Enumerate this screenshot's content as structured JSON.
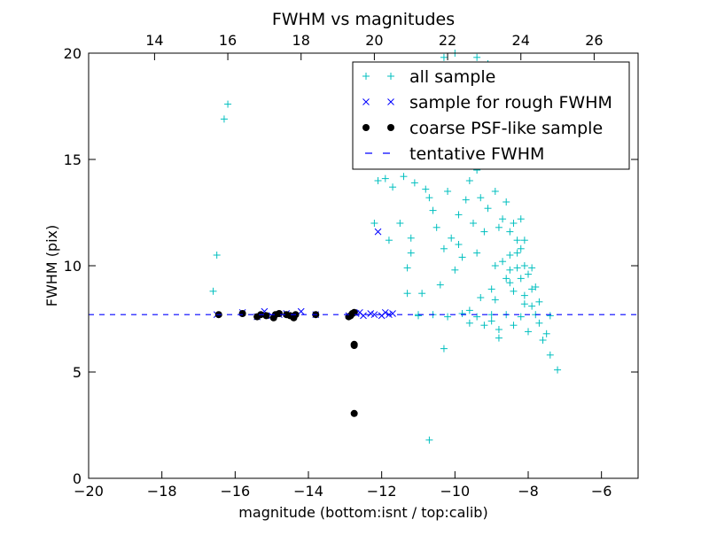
{
  "chart_data": {
    "type": "scatter",
    "title": "FWHM vs magnitudes",
    "xlabel": "magnitude (bottom:isnt / top:calib)",
    "ylabel": "FWHM (pix)",
    "xlim": [
      -20,
      -5
    ],
    "ylim": [
      0,
      20
    ],
    "x_ticks": [
      -20,
      -18,
      -16,
      -14,
      -12,
      -10,
      -8,
      -6
    ],
    "x_tick_labels": [
      "−20",
      "−18",
      "−16",
      "−14",
      "−12",
      "−10",
      "−8",
      "−6"
    ],
    "y_ticks": [
      0,
      5,
      10,
      15,
      20
    ],
    "y_tick_labels": [
      "0",
      "5",
      "10",
      "15",
      "20"
    ],
    "top_axis": {
      "label_offset": 32.2,
      "ticks": [
        14,
        16,
        18,
        20,
        22,
        24,
        26
      ],
      "tick_labels": [
        "14",
        "16",
        "18",
        "20",
        "22",
        "24",
        "26"
      ]
    },
    "legend_position": "upper-right",
    "grid": false,
    "series": [
      {
        "name": "all sample",
        "marker": "plus",
        "color": "#00bfbf",
        "points": [
          [
            -16.6,
            8.8
          ],
          [
            -16.5,
            10.5
          ],
          [
            -16.3,
            16.9
          ],
          [
            -16.2,
            17.6
          ],
          [
            -12.2,
            12.0
          ],
          [
            -12.1,
            14.0
          ],
          [
            -11.9,
            14.1
          ],
          [
            -11.8,
            11.2
          ],
          [
            -11.7,
            13.7
          ],
          [
            -11.5,
            12.0
          ],
          [
            -11.4,
            14.2
          ],
          [
            -11.3,
            9.9
          ],
          [
            -11.3,
            8.7
          ],
          [
            -11.2,
            10.6
          ],
          [
            -11.2,
            11.3
          ],
          [
            -11.1,
            13.9
          ],
          [
            -11.0,
            7.7
          ],
          [
            -10.9,
            8.7
          ],
          [
            -10.8,
            13.6
          ],
          [
            -10.7,
            1.8
          ],
          [
            -10.7,
            13.2
          ],
          [
            -10.6,
            12.6
          ],
          [
            -10.5,
            11.8
          ],
          [
            -10.4,
            9.1
          ],
          [
            -10.3,
            10.8
          ],
          [
            -10.3,
            6.1
          ],
          [
            -10.2,
            13.5
          ],
          [
            -10.1,
            11.3
          ],
          [
            -10.0,
            9.8
          ],
          [
            -10.0,
            14.8
          ],
          [
            -9.9,
            12.4
          ],
          [
            -9.9,
            11.0
          ],
          [
            -9.8,
            10.4
          ],
          [
            -9.7,
            13.1
          ],
          [
            -9.6,
            14.0
          ],
          [
            -9.6,
            7.9
          ],
          [
            -9.5,
            12.0
          ],
          [
            -9.4,
            10.6
          ],
          [
            -9.4,
            14.5
          ],
          [
            -9.3,
            13.2
          ],
          [
            -9.2,
            11.6
          ],
          [
            -9.1,
            12.7
          ],
          [
            -9.0,
            8.9
          ],
          [
            -9.0,
            7.4
          ],
          [
            -8.9,
            13.5
          ],
          [
            -8.9,
            10.0
          ],
          [
            -8.8,
            11.8
          ],
          [
            -8.8,
            6.6
          ],
          [
            -8.7,
            12.2
          ],
          [
            -8.6,
            9.4
          ],
          [
            -8.6,
            13.0
          ],
          [
            -8.5,
            10.5
          ],
          [
            -8.5,
            11.6
          ],
          [
            -8.4,
            12.0
          ],
          [
            -8.4,
            8.8
          ],
          [
            -8.3,
            11.2
          ],
          [
            -8.3,
            9.9
          ],
          [
            -8.2,
            10.8
          ],
          [
            -8.2,
            12.2
          ],
          [
            -8.1,
            8.2
          ],
          [
            -8.1,
            10.0
          ],
          [
            -8.0,
            9.6
          ],
          [
            -7.9,
            8.9
          ],
          [
            -7.8,
            9.0
          ],
          [
            -7.6,
            6.5
          ],
          [
            -7.5,
            6.8
          ],
          [
            -7.4,
            5.8
          ],
          [
            -7.2,
            5.1
          ],
          [
            -11.0,
            7.65
          ],
          [
            -10.6,
            7.7
          ],
          [
            -10.2,
            7.6
          ],
          [
            -9.8,
            7.75
          ],
          [
            -9.4,
            7.6
          ],
          [
            -9.0,
            7.7
          ],
          [
            -8.6,
            7.7
          ],
          [
            -8.2,
            7.6
          ],
          [
            -7.8,
            7.7
          ],
          [
            -7.4,
            7.65
          ],
          [
            -9.6,
            7.3
          ],
          [
            -9.2,
            7.2
          ],
          [
            -8.8,
            7.0
          ],
          [
            -8.4,
            7.2
          ],
          [
            -8.0,
            6.9
          ],
          [
            -7.7,
            7.3
          ],
          [
            -9.3,
            8.5
          ],
          [
            -8.9,
            8.4
          ],
          [
            -8.5,
            9.2
          ],
          [
            -8.1,
            8.6
          ],
          [
            -7.9,
            8.1
          ],
          [
            -7.7,
            8.3
          ],
          [
            -8.7,
            10.2
          ],
          [
            -8.3,
            10.6
          ],
          [
            -8.1,
            11.2
          ],
          [
            -8.5,
            9.8
          ],
          [
            -8.2,
            9.4
          ],
          [
            -7.9,
            9.9
          ],
          [
            -10.5,
            15.0
          ],
          [
            -10.1,
            16.5
          ],
          [
            -9.7,
            17.3
          ],
          [
            -9.3,
            16.0
          ],
          [
            -8.9,
            15.6
          ],
          [
            -9.5,
            18.2
          ],
          [
            -9.9,
            19.0
          ],
          [
            -9.1,
            19.5
          ],
          [
            -10.3,
            19.8
          ],
          [
            -8.7,
            17.6
          ],
          [
            -10.0,
            20.0
          ],
          [
            -9.4,
            19.8
          ]
        ]
      },
      {
        "name": "sample for rough FWHM",
        "marker": "x",
        "color": "#0000ff",
        "points": [
          [
            -16.5,
            7.7
          ],
          [
            -15.8,
            7.8
          ],
          [
            -15.4,
            7.6
          ],
          [
            -15.2,
            7.85
          ],
          [
            -15.0,
            7.65
          ],
          [
            -14.8,
            7.7
          ],
          [
            -14.6,
            7.75
          ],
          [
            -14.4,
            7.65
          ],
          [
            -14.2,
            7.85
          ],
          [
            -13.8,
            7.7
          ],
          [
            -12.9,
            7.65
          ],
          [
            -12.7,
            7.75
          ],
          [
            -12.6,
            7.8
          ],
          [
            -12.5,
            7.65
          ],
          [
            -12.3,
            7.75
          ],
          [
            -12.2,
            7.7
          ],
          [
            -12.1,
            11.6
          ],
          [
            -12.0,
            7.65
          ],
          [
            -11.9,
            7.8
          ],
          [
            -11.8,
            7.7
          ],
          [
            -11.7,
            7.75
          ]
        ]
      },
      {
        "name": "coarse PSF-like sample",
        "marker": "circle",
        "color": "#000000",
        "points": [
          [
            -16.45,
            7.7
          ],
          [
            -15.8,
            7.75
          ],
          [
            -15.4,
            7.6
          ],
          [
            -15.3,
            7.7
          ],
          [
            -15.15,
            7.65
          ],
          [
            -14.95,
            7.55
          ],
          [
            -14.9,
            7.7
          ],
          [
            -14.8,
            7.75
          ],
          [
            -14.6,
            7.7
          ],
          [
            -14.5,
            7.65
          ],
          [
            -14.4,
            7.55
          ],
          [
            -14.35,
            7.7
          ],
          [
            -13.8,
            7.7
          ],
          [
            -12.9,
            7.6
          ],
          [
            -12.85,
            7.65
          ],
          [
            -12.8,
            7.75
          ],
          [
            -12.75,
            7.8
          ],
          [
            -12.75,
            6.3
          ],
          [
            -12.75,
            6.25
          ],
          [
            -12.75,
            3.05
          ]
        ]
      },
      {
        "name": "tentative FWHM",
        "marker": "dashed-line",
        "color": "#0000ff",
        "y": 7.7
      }
    ]
  }
}
